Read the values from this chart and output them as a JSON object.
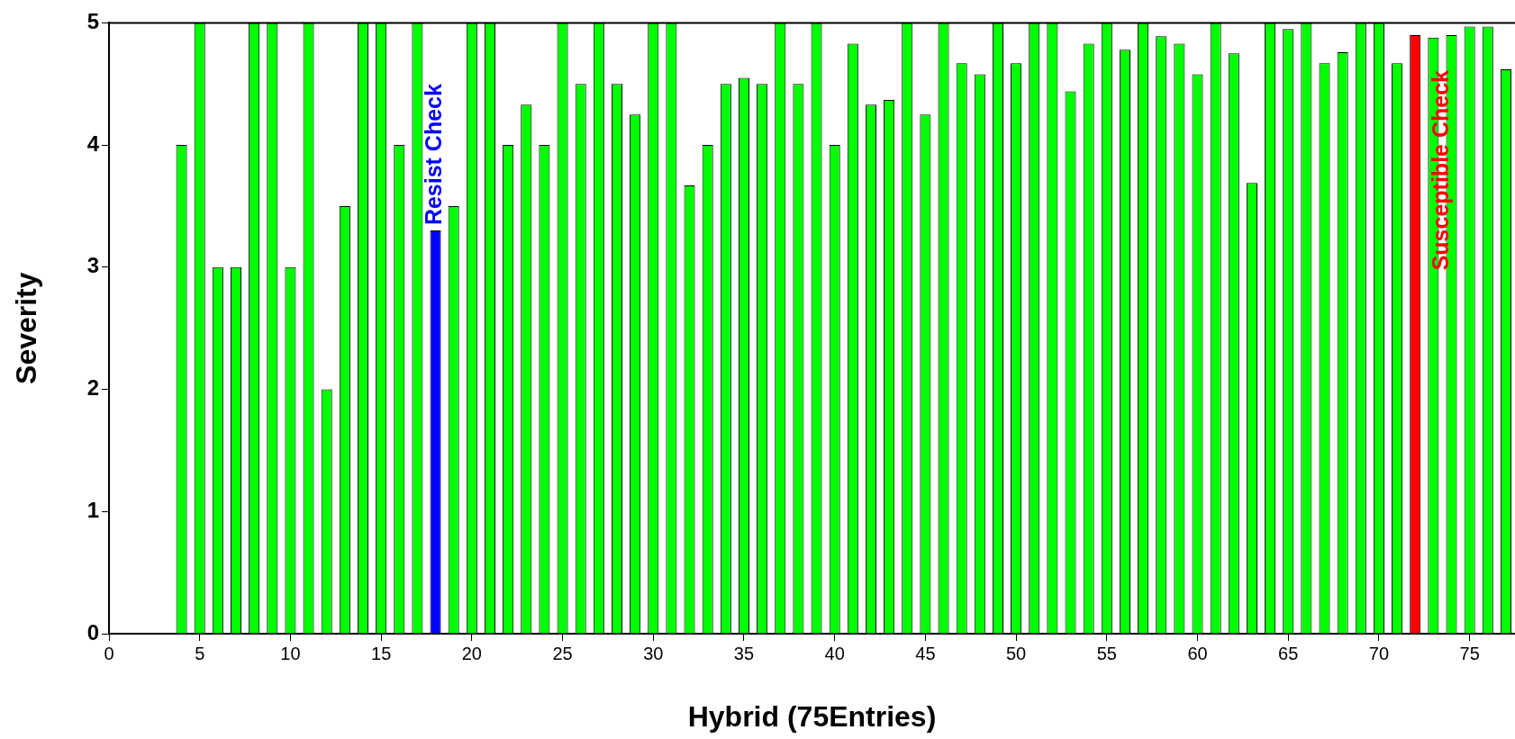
{
  "chart_data": {
    "type": "bar",
    "x": [
      4,
      5,
      6,
      7,
      8,
      9,
      10,
      11,
      12,
      13,
      14,
      15,
      16,
      17,
      18,
      19,
      20,
      21,
      22,
      23,
      24,
      25,
      26,
      27,
      28,
      29,
      30,
      31,
      32,
      33,
      34,
      35,
      36,
      37,
      38,
      39,
      40,
      41,
      42,
      43,
      44,
      45,
      46,
      47,
      48,
      49,
      50,
      51,
      52,
      53,
      54,
      55,
      56,
      57,
      58,
      59,
      60,
      61,
      62,
      63,
      64,
      65,
      66,
      67,
      68,
      69,
      70,
      71,
      72,
      73,
      74,
      75,
      76,
      77
    ],
    "values": [
      4,
      5,
      3,
      3,
      5,
      5,
      3,
      5,
      2,
      3.5,
      5,
      5,
      4,
      5,
      3.3,
      3.5,
      5,
      5,
      4,
      4.33,
      4,
      5,
      4.5,
      5,
      4.5,
      4.25,
      5,
      5,
      3.67,
      4,
      4.5,
      4.55,
      4.5,
      5,
      4.5,
      5,
      4,
      4.83,
      4.33,
      4.37,
      5,
      4.25,
      5,
      4.67,
      4.58,
      5,
      4.67,
      5,
      5,
      4.44,
      4.83,
      5,
      4.78,
      5,
      4.89,
      4.83,
      4.58,
      5,
      4.75,
      3.69,
      5,
      4.95,
      5,
      4.67,
      4.76,
      5,
      5,
      4.67,
      4.9,
      4.88,
      4.9,
      4.97,
      4.97,
      4.62
    ],
    "colors": [
      "#00ff00",
      "#00ff00",
      "#00ff00",
      "#00ff00",
      "#00ff00",
      "#00ff00",
      "#00ff00",
      "#00ff00",
      "#00ff00",
      "#00ff00",
      "#00ff00",
      "#00ff00",
      "#00ff00",
      "#00ff00",
      "#0000ff",
      "#00ff00",
      "#00ff00",
      "#00ff00",
      "#00ff00",
      "#00ff00",
      "#00ff00",
      "#00ff00",
      "#00ff00",
      "#00ff00",
      "#00ff00",
      "#00ff00",
      "#00ff00",
      "#00ff00",
      "#00ff00",
      "#00ff00",
      "#00ff00",
      "#00ff00",
      "#00ff00",
      "#00ff00",
      "#00ff00",
      "#00ff00",
      "#00ff00",
      "#00ff00",
      "#00ff00",
      "#00ff00",
      "#00ff00",
      "#00ff00",
      "#00ff00",
      "#00ff00",
      "#00ff00",
      "#00ff00",
      "#00ff00",
      "#00ff00",
      "#00ff00",
      "#00ff00",
      "#00ff00",
      "#00ff00",
      "#00ff00",
      "#00ff00",
      "#00ff00",
      "#00ff00",
      "#00ff00",
      "#00ff00",
      "#00ff00",
      "#00ff00",
      "#00ff00",
      "#00ff00",
      "#00ff00",
      "#00ff00",
      "#00ff00",
      "#00ff00",
      "#00ff00",
      "#00ff00",
      "#ff0000",
      "#00ff00",
      "#00ff00",
      "#00ff00",
      "#00ff00",
      "#00ff00"
    ],
    "xlabel": "Hybrid (75Entries)",
    "ylabel": "Severity",
    "xlim": [
      0,
      77.5
    ],
    "xticks": [
      0,
      5,
      10,
      15,
      20,
      25,
      30,
      35,
      40,
      45,
      50,
      55,
      60,
      65,
      70,
      75
    ],
    "ylim": [
      0,
      5
    ],
    "yticks": [
      0,
      1,
      2,
      3,
      4,
      5
    ],
    "annotations": [
      {
        "text": "Resist Check",
        "x": 18,
        "y": 3.3
      },
      {
        "text": "Susceptible Check",
        "x": 73.5,
        "y": 2.93
      }
    ]
  }
}
